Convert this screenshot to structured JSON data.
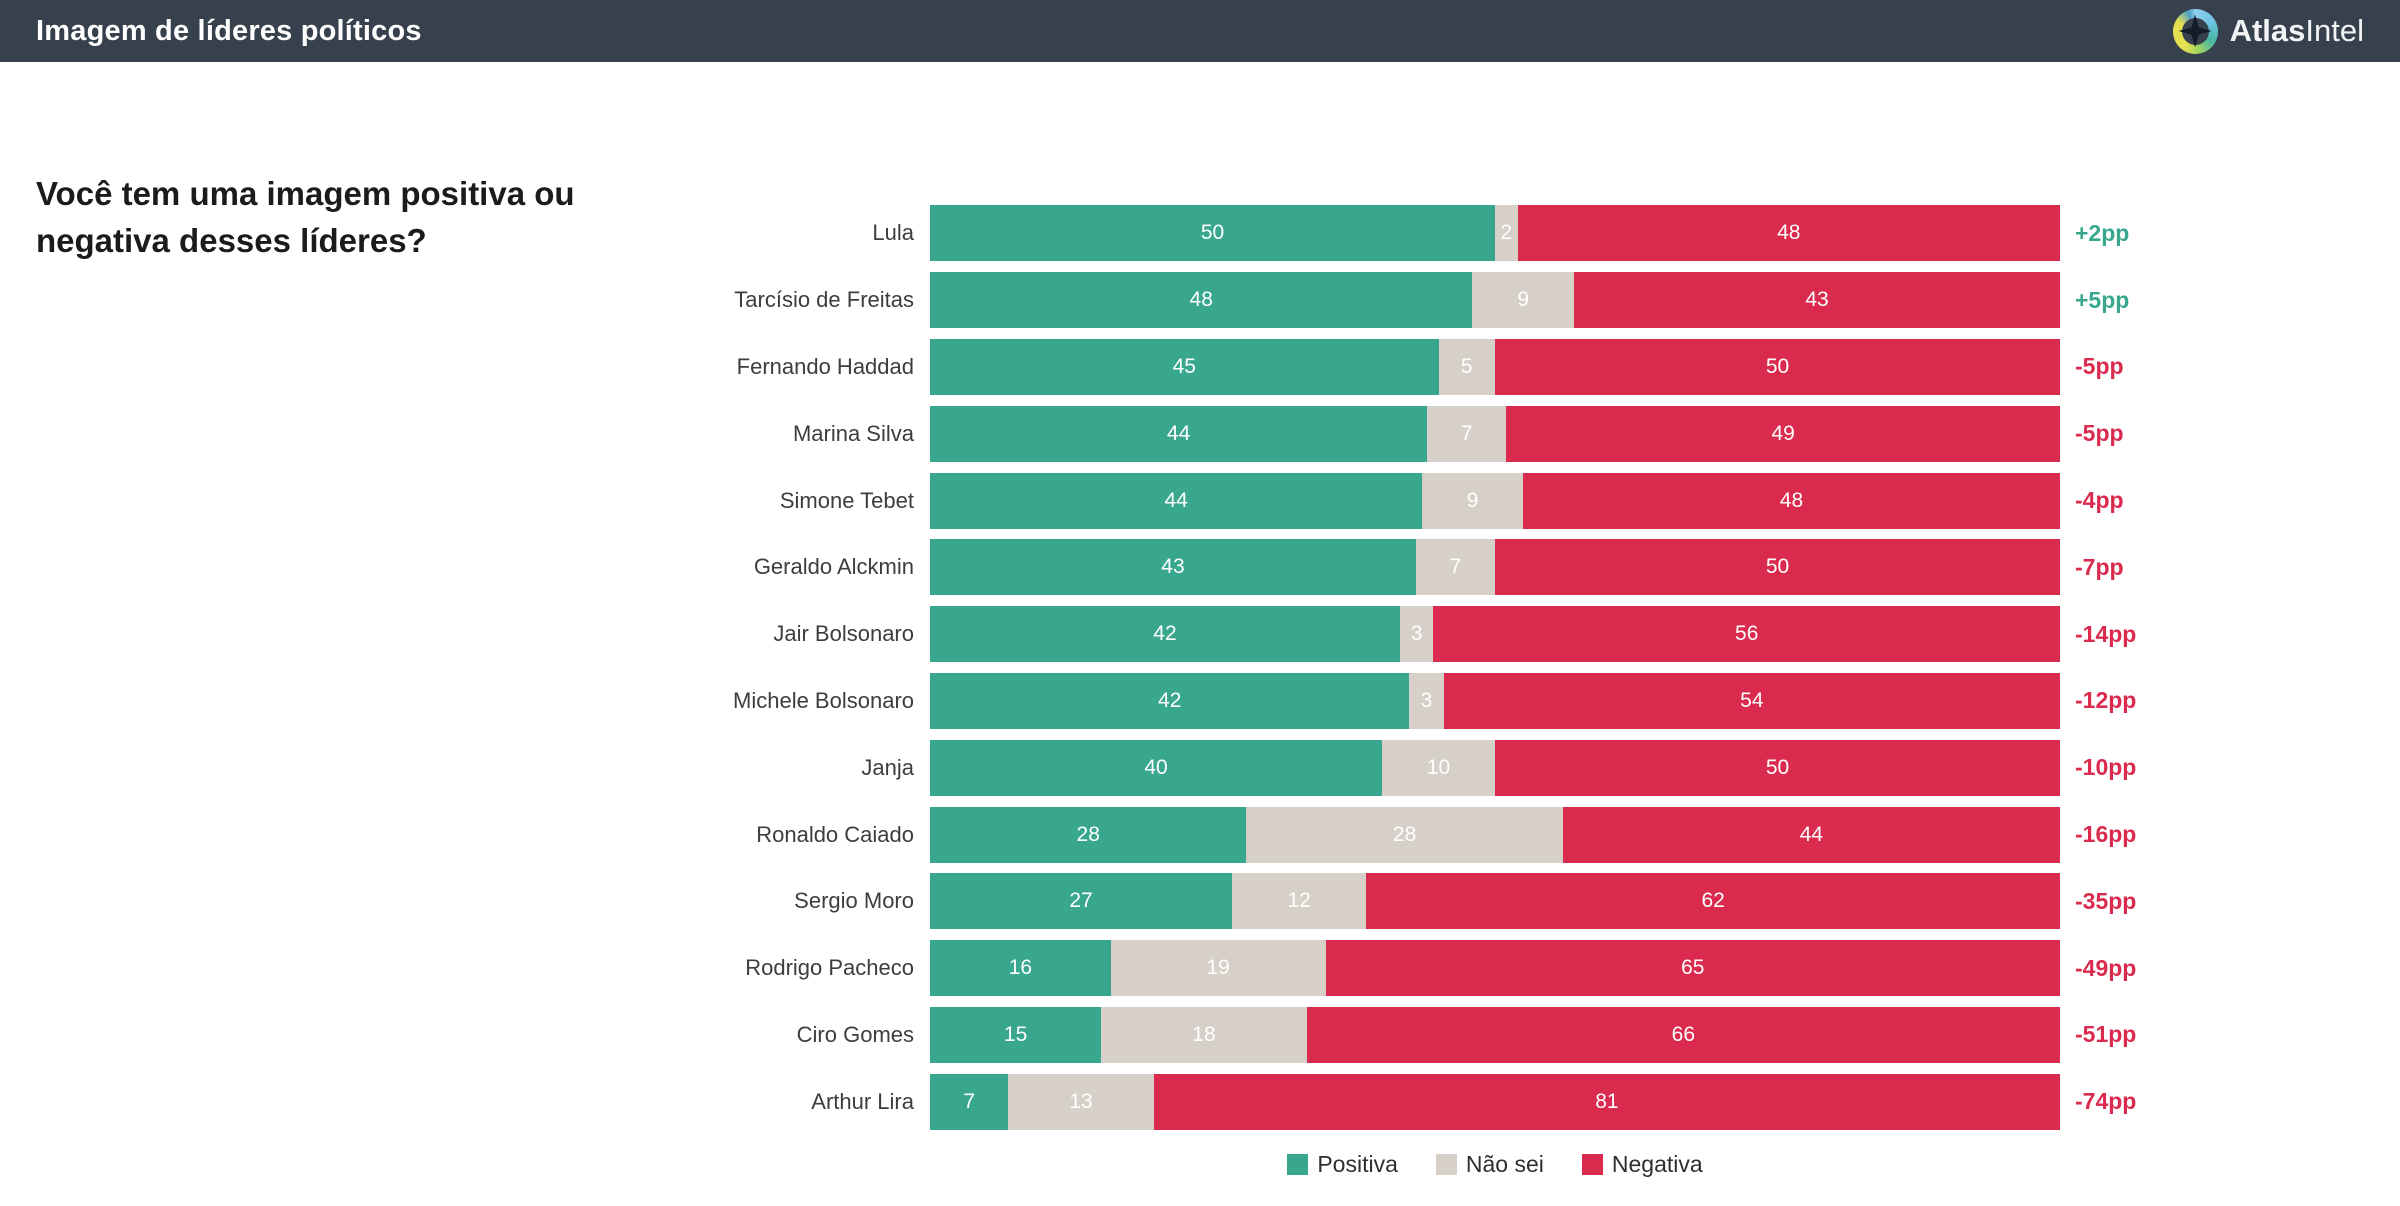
{
  "header": {
    "title": "Imagem de líderes políticos",
    "brand_bold": "Atlas",
    "brand_light": "Intel"
  },
  "question": "Você tem uma imagem positiva ou negativa desses líderes?",
  "colors": {
    "header_bg": "#37404d",
    "positive": "#38a78e",
    "neutral": "#d6d0c8",
    "negative": "#da2b4e"
  },
  "legend": [
    {
      "label": "Positiva",
      "key": "positive"
    },
    {
      "label": "Não sei",
      "key": "neutral"
    },
    {
      "label": "Negativa",
      "key": "negative"
    }
  ],
  "chart_data": {
    "type": "bar",
    "orientation": "horizontal",
    "stacked": true,
    "unit": "percent",
    "categories": [
      "Lula",
      "Tarcísio de Freitas",
      "Fernando Haddad",
      "Marina Silva",
      "Simone Tebet",
      "Geraldo Alckmin",
      "Jair Bolsonaro",
      "Michele Bolsonaro",
      "Janja",
      "Ronaldo Caiado",
      "Sergio Moro",
      "Rodrigo Pacheco",
      "Ciro Gomes",
      "Arthur Lira"
    ],
    "series": [
      {
        "name": "Positiva",
        "key": "positive",
        "values": [
          50,
          48,
          45,
          44,
          44,
          43,
          42,
          42,
          40,
          28,
          27,
          16,
          15,
          7
        ]
      },
      {
        "name": "Não sei",
        "key": "neutral",
        "values": [
          2,
          9,
          5,
          7,
          9,
          7,
          3,
          3,
          10,
          28,
          12,
          19,
          18,
          13
        ]
      },
      {
        "name": "Negativa",
        "key": "negative",
        "values": [
          48,
          43,
          50,
          49,
          48,
          50,
          56,
          54,
          50,
          44,
          62,
          65,
          66,
          81
        ]
      }
    ],
    "diffs": [
      "+2pp",
      "+5pp",
      "-5pp",
      "-5pp",
      "-4pp",
      "-7pp",
      "-14pp",
      "-12pp",
      "-10pp",
      "-16pp",
      "-35pp",
      "-49pp",
      "-51pp",
      "-74pp"
    ],
    "legend_position": "bottom",
    "grid": false
  }
}
